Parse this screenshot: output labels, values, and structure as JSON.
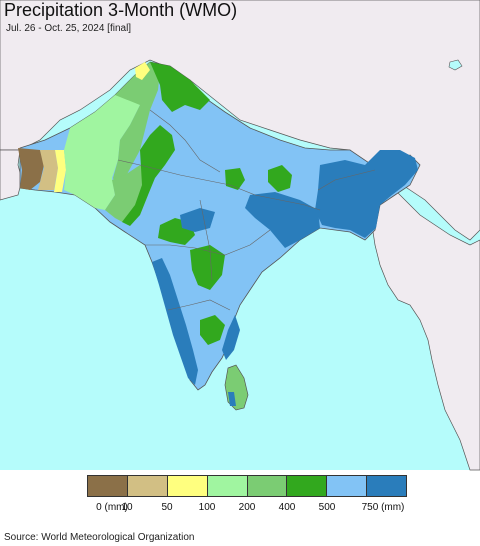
{
  "title": "Precipitation 3-Month (WMO)",
  "subtitle": "Jul. 26 - Oct. 25, 2024 [final]",
  "source": "Source: World Meteorological Organization",
  "legend": {
    "colors": [
      "#8b7048",
      "#d2bf84",
      "#ffff7f",
      "#a0f5a0",
      "#7bcc73",
      "#32a81e",
      "#82c3f5",
      "#2a7dbb"
    ],
    "labels": [
      "0 (mm)",
      "10",
      "50",
      "100",
      "200",
      "400",
      "500",
      "750 (mm)"
    ]
  },
  "map_colors": {
    "ocean": "#b5fcfb",
    "outside_land": "#f0ebf0",
    "border": "#555555"
  }
}
